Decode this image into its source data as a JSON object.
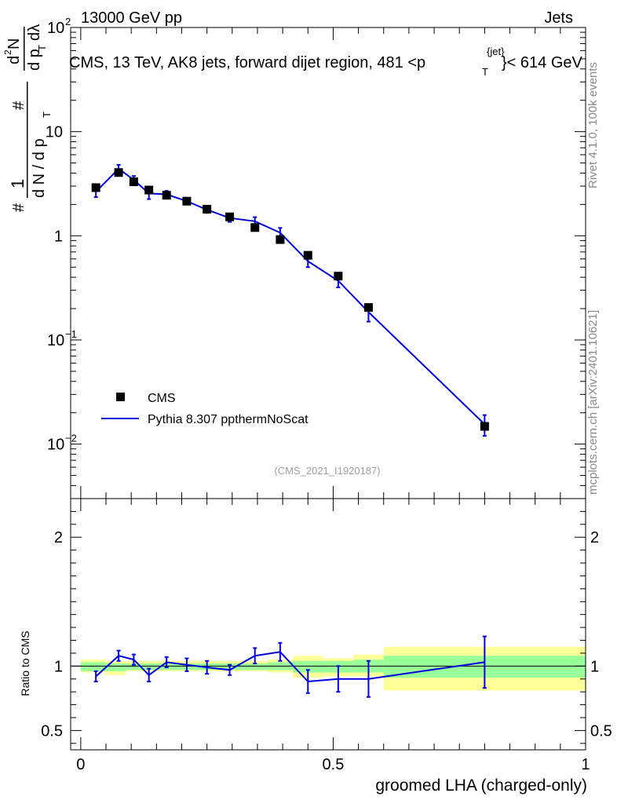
{
  "header": {
    "left": "13000 GeV pp",
    "right": "Jets"
  },
  "title": {
    "main": "CMS, 13 TeV, AK8 jets, forward dijet region, 481 <p",
    "sup": "{jet}",
    "sub": "T",
    "tail": "}< 614 GeV"
  },
  "side_labels": {
    "rivet": "Rivet 4.1.0,  100k events",
    "mcplots": "mcplots.cern.ch [arXiv:2401.10621]"
  },
  "watermark": "(CMS_2021_I1920187)",
  "legend": {
    "data_label": "CMS",
    "mc_label": "Pythia 8.307 ppthermNoScat"
  },
  "y_axis": {
    "hash1": "#",
    "one": "1",
    "hash2": "#",
    "dN": "d N / d p",
    "T1": "T",
    "d2N": "d",
    "two": "2",
    "N": "N",
    "dp": "d p",
    "T2": "T",
    "dlambda": "dλ"
  },
  "ratio_ylabel": "Ratio to CMS",
  "xlabel": "groomed LHA (charged-only)",
  "colors": {
    "mc": "#0000dd",
    "green_band": "#99ff99",
    "yellow_band": "#ffff99"
  },
  "chart_data": {
    "type": "line",
    "main_panel": {
      "yscale": "log",
      "ylim": [
        0.003,
        100
      ],
      "xlim": [
        -0.02,
        1.0
      ],
      "y_tick_labels": [
        {
          "v": 100,
          "base": "10",
          "exp": "2"
        },
        {
          "v": 10,
          "base": "10",
          "exp": ""
        },
        {
          "v": 1,
          "base": "1",
          "exp": ""
        },
        {
          "v": 0.1,
          "base": "10",
          "exp": "−1"
        },
        {
          "v": 0.01,
          "base": "10",
          "exp": "−2"
        }
      ],
      "data": {
        "name": "CMS",
        "x": [
          0.03,
          0.075,
          0.105,
          0.135,
          0.17,
          0.21,
          0.25,
          0.295,
          0.345,
          0.395,
          0.45,
          0.51,
          0.57,
          0.8
        ],
        "y": [
          2.9,
          4.05,
          3.3,
          2.75,
          2.45,
          2.15,
          1.8,
          1.52,
          1.2,
          0.92,
          0.65,
          0.41,
          0.205,
          0.0148
        ]
      },
      "mc": {
        "name": "Pythia 8.307 ppthermNoScat",
        "x": [
          0.03,
          0.075,
          0.105,
          0.135,
          0.17,
          0.21,
          0.25,
          0.295,
          0.345,
          0.395,
          0.45,
          0.51,
          0.57,
          0.8
        ],
        "y": [
          2.65,
          4.4,
          3.45,
          2.55,
          2.5,
          2.15,
          1.78,
          1.48,
          1.38,
          1.07,
          0.57,
          0.37,
          0.185,
          0.0155
        ],
        "err": [
          0.3,
          0.4,
          0.3,
          0.3,
          0.2,
          0.15,
          0.12,
          0.12,
          0.13,
          0.12,
          0.07,
          0.05,
          0.035,
          0.0035
        ]
      }
    },
    "ratio_panel": {
      "ylim": [
        0.35,
        2.3
      ],
      "y_ticks": [
        0.5,
        1,
        2
      ],
      "y_tick_labels": [
        "0.5",
        "1",
        "2"
      ],
      "bands": [
        {
          "x0": 0.0,
          "x1": 0.05,
          "g0": 0.96,
          "g1": 1.03,
          "y0": 0.95,
          "y1": 1.05
        },
        {
          "x0": 0.05,
          "x1": 0.09,
          "g0": 0.96,
          "g1": 1.02,
          "y0": 0.93,
          "y1": 1.04
        },
        {
          "x0": 0.09,
          "x1": 0.12,
          "g0": 0.97,
          "g1": 1.02,
          "y0": 0.96,
          "y1": 1.04
        },
        {
          "x0": 0.12,
          "x1": 0.15,
          "g0": 0.97,
          "g1": 1.02,
          "y0": 0.96,
          "y1": 1.04
        },
        {
          "x0": 0.15,
          "x1": 0.19,
          "g0": 0.97,
          "g1": 1.02,
          "y0": 0.96,
          "y1": 1.04
        },
        {
          "x0": 0.19,
          "x1": 0.23,
          "g0": 0.97,
          "g1": 1.02,
          "y0": 0.96,
          "y1": 1.04
        },
        {
          "x0": 0.23,
          "x1": 0.27,
          "g0": 0.97,
          "g1": 1.02,
          "y0": 0.96,
          "y1": 1.04
        },
        {
          "x0": 0.27,
          "x1": 0.32,
          "g0": 0.97,
          "g1": 1.02,
          "y0": 0.96,
          "y1": 1.04
        },
        {
          "x0": 0.32,
          "x1": 0.37,
          "g0": 0.97,
          "g1": 1.02,
          "y0": 0.96,
          "y1": 1.04
        },
        {
          "x0": 0.37,
          "x1": 0.42,
          "g0": 0.97,
          "g1": 1.03,
          "y0": 0.95,
          "y1": 1.05
        },
        {
          "x0": 0.42,
          "x1": 0.48,
          "g0": 0.95,
          "g1": 1.04,
          "y0": 0.91,
          "y1": 1.08
        },
        {
          "x0": 0.48,
          "x1": 0.54,
          "g0": 0.95,
          "g1": 1.04,
          "y0": 0.92,
          "y1": 1.06
        },
        {
          "x0": 0.54,
          "x1": 0.6,
          "g0": 0.95,
          "g1": 1.05,
          "y0": 0.92,
          "y1": 1.09
        },
        {
          "x0": 0.6,
          "x1": 1.0,
          "g0": 0.91,
          "g1": 1.08,
          "y0": 0.81,
          "y1": 1.15
        }
      ],
      "mc": {
        "x": [
          0.03,
          0.075,
          0.105,
          0.135,
          0.17,
          0.21,
          0.25,
          0.295,
          0.345,
          0.395,
          0.45,
          0.51,
          0.57,
          0.8
        ],
        "y": [
          0.92,
          1.08,
          1.05,
          0.93,
          1.03,
          1.01,
          0.99,
          0.97,
          1.08,
          1.11,
          0.88,
          0.9,
          0.9,
          1.03
        ],
        "err": [
          0.04,
          0.04,
          0.04,
          0.05,
          0.04,
          0.05,
          0.05,
          0.04,
          0.06,
          0.07,
          0.09,
          0.1,
          0.14,
          0.2
        ]
      }
    },
    "x_axis": {
      "ticks": [
        0,
        0.5,
        1
      ],
      "tick_labels": [
        "0",
        "0.5",
        "1"
      ]
    }
  }
}
